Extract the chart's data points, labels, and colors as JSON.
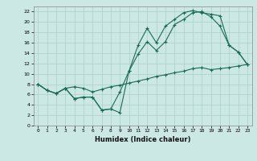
{
  "xlabel": "Humidex (Indice chaleur)",
  "bg_color": "#cce8e4",
  "line_color": "#1a6b5a",
  "grid_color": "#aacfc8",
  "xlim": [
    -0.5,
    23.5
  ],
  "ylim": [
    0,
    23
  ],
  "xticks": [
    0,
    1,
    2,
    3,
    4,
    5,
    6,
    7,
    8,
    9,
    10,
    11,
    12,
    13,
    14,
    15,
    16,
    17,
    18,
    19,
    20,
    21,
    22,
    23
  ],
  "yticks": [
    0,
    2,
    4,
    6,
    8,
    10,
    12,
    14,
    16,
    18,
    20,
    22
  ],
  "line1_x": [
    0,
    1,
    2,
    3,
    4,
    5,
    6,
    7,
    8,
    9,
    10,
    11,
    12,
    13,
    14,
    15,
    16,
    17,
    18,
    19,
    20,
    21,
    22,
    23
  ],
  "line1_y": [
    8.0,
    6.8,
    6.2,
    7.2,
    7.5,
    7.2,
    6.5,
    7.0,
    7.5,
    7.8,
    8.2,
    8.6,
    9.0,
    9.5,
    9.8,
    10.2,
    10.5,
    11.0,
    11.2,
    10.8,
    11.0,
    11.2,
    11.5,
    11.8
  ],
  "line2_x": [
    0,
    1,
    2,
    3,
    4,
    5,
    6,
    7,
    8,
    9,
    10,
    11,
    12,
    13,
    14,
    15,
    16,
    17,
    18,
    19,
    20,
    21,
    22,
    23
  ],
  "line2_y": [
    8.0,
    6.8,
    6.2,
    7.2,
    5.2,
    5.5,
    5.5,
    3.0,
    3.2,
    6.5,
    10.5,
    13.8,
    16.2,
    14.5,
    16.2,
    19.5,
    20.5,
    21.8,
    22.0,
    21.0,
    19.2,
    15.5,
    14.2,
    11.8
  ],
  "line3_x": [
    0,
    1,
    2,
    3,
    4,
    5,
    6,
    7,
    8,
    9,
    10,
    11,
    12,
    13,
    14,
    15,
    16,
    17,
    18,
    19,
    20,
    21,
    22,
    23
  ],
  "line3_y": [
    8.0,
    6.8,
    6.2,
    7.2,
    5.2,
    5.5,
    5.5,
    3.0,
    3.2,
    2.5,
    10.5,
    15.5,
    18.8,
    16.0,
    19.2,
    20.5,
    21.8,
    22.2,
    21.8,
    21.5,
    21.2,
    15.5,
    14.2,
    11.8
  ]
}
